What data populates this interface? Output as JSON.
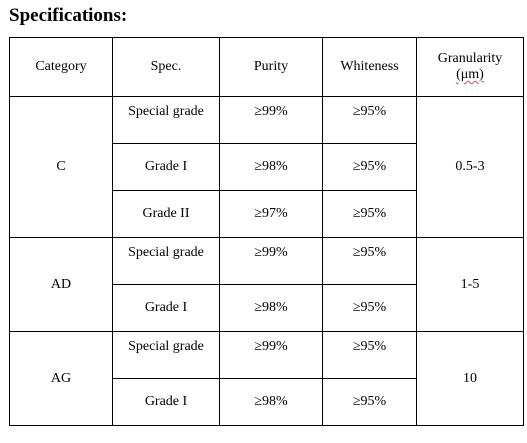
{
  "heading": "Specifications:",
  "columns": {
    "category": "Category",
    "spec": "Spec.",
    "purity": "Purity",
    "whiteness": "Whiteness",
    "granularity_line1": "Granularity",
    "granularity_line2": "(μm)"
  },
  "groups": [
    {
      "category": "C",
      "granularity": "0.5-3",
      "rows": [
        {
          "spec": "Special grade",
          "purity": "≥99%",
          "whiteness": "≥95%"
        },
        {
          "spec": "Grade I",
          "purity": "≥98%",
          "whiteness": "≥95%"
        },
        {
          "spec": "Grade II",
          "purity": "≥97%",
          "whiteness": "≥95%"
        }
      ]
    },
    {
      "category": "AD",
      "granularity": "1-5",
      "rows": [
        {
          "spec": "Special grade",
          "purity": "≥99%",
          "whiteness": "≥95%"
        },
        {
          "spec": "Grade I",
          "purity": "≥98%",
          "whiteness": "≥95%"
        }
      ]
    },
    {
      "category": "AG",
      "granularity": "10",
      "rows": [
        {
          "spec": "Special grade",
          "purity": "≥99%",
          "whiteness": "≥95%"
        },
        {
          "spec": "Grade I",
          "purity": "≥98%",
          "whiteness": "≥95%"
        }
      ]
    }
  ]
}
